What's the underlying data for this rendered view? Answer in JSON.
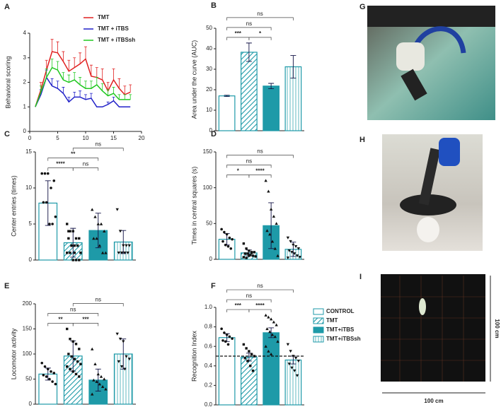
{
  "chart_data": [
    {
      "type": "line",
      "panel": "A",
      "ylabel": "Behavioral scoring",
      "x": [
        1,
        2,
        3,
        4,
        5,
        6,
        7,
        8,
        9,
        10,
        11,
        12,
        13,
        14,
        15,
        16,
        17,
        18
      ],
      "xlim": [
        0,
        20
      ],
      "xticks": [
        0,
        5,
        10,
        15,
        20
      ],
      "ylim": [
        0,
        4
      ],
      "yticks": [
        0,
        1,
        2,
        3,
        4
      ],
      "legend": "upper right",
      "series": [
        {
          "name": "TMT",
          "color": "#e02020",
          "values": [
            1.0,
            1.7,
            2.5,
            3.25,
            3.2,
            2.85,
            2.45,
            2.6,
            2.75,
            2.95,
            2.25,
            2.2,
            2.1,
            1.65,
            2.1,
            1.75,
            1.5,
            1.6
          ],
          "errors": [
            0,
            0.3,
            0.4,
            0.5,
            0.45,
            0.4,
            0.45,
            0.4,
            0.45,
            0.5,
            0.45,
            0.4,
            0.45,
            0.35,
            0.45,
            0.4,
            0.35,
            0.3
          ]
        },
        {
          "name": "TMT + iTBS",
          "color": "#2020c8",
          "values": [
            1.0,
            1.5,
            2.2,
            1.85,
            1.75,
            1.55,
            1.2,
            1.4,
            1.4,
            1.3,
            1.35,
            1.0,
            1.0,
            1.1,
            1.25,
            1.0,
            1.0,
            1.0
          ],
          "errors": [
            0,
            0.2,
            0.3,
            0.3,
            0.3,
            0.25,
            0.2,
            0.2,
            0.25,
            0.2,
            0.2,
            0,
            0,
            0.1,
            0.15,
            0,
            0,
            0
          ]
        },
        {
          "name": "TMT + iTBSsh",
          "color": "#20c820",
          "values": [
            1.0,
            1.6,
            2.2,
            2.6,
            2.5,
            2.1,
            2.0,
            2.1,
            1.9,
            1.75,
            1.75,
            1.9,
            1.65,
            1.45,
            1.55,
            1.3,
            1.3,
            1.3
          ],
          "errors": [
            0,
            0.25,
            0.35,
            0.35,
            0.35,
            0.3,
            0.3,
            0.3,
            0.3,
            0.3,
            0.3,
            0.3,
            0.3,
            0.25,
            0.25,
            0.2,
            0.2,
            0.2
          ]
        }
      ]
    },
    {
      "type": "bar",
      "panel": "B",
      "ylabel": "Area under the curve (AUC)",
      "color": "#1e9aa8",
      "styles": [
        "outline",
        "hatch",
        "solid",
        "vlines"
      ],
      "values": [
        17,
        38.3,
        21.8,
        31.2
      ],
      "errors": [
        0.3,
        4.5,
        1.3,
        5.5
      ],
      "ylim": [
        0,
        50
      ],
      "yticks": [
        0,
        10,
        20,
        30,
        40,
        50
      ],
      "comparisons": [
        {
          "pair": [
            0,
            1
          ],
          "label": "***"
        },
        {
          "pair": [
            1,
            2
          ],
          "label": "*"
        },
        {
          "pair": [
            0,
            2
          ],
          "label": "ns"
        },
        {
          "pair": [
            0,
            3
          ],
          "label": "ns"
        }
      ]
    },
    {
      "type": "bar",
      "panel": "C",
      "ylabel": "Center entries (times)",
      "color": "#1e9aa8",
      "styles": [
        "outline",
        "hatch",
        "solid",
        "vlines"
      ],
      "values": [
        7.9,
        2.4,
        4.1,
        2.5
      ],
      "errors": [
        3.1,
        2.0,
        2.4,
        1.6
      ],
      "points": [
        [
          12,
          12,
          12,
          10,
          11,
          8,
          8,
          5,
          5,
          6
        ],
        [
          5,
          4,
          4,
          3,
          3,
          3,
          2,
          2,
          2,
          1,
          1,
          1,
          0,
          0,
          0,
          4,
          2,
          1
        ],
        [
          7,
          6,
          5,
          5,
          4,
          3,
          3,
          2,
          1,
          1
        ],
        [
          7,
          4,
          2,
          2,
          2,
          1,
          1,
          1,
          1
        ]
      ],
      "ylim": [
        0,
        15
      ],
      "yticks": [
        0,
        5,
        10,
        15
      ],
      "comparisons": [
        {
          "pair": [
            0,
            1
          ],
          "label": "****"
        },
        {
          "pair": [
            1,
            2
          ],
          "label": "ns"
        },
        {
          "pair": [
            0,
            2
          ],
          "label": "**"
        },
        {
          "pair": [
            1,
            3
          ],
          "label": "ns"
        }
      ]
    },
    {
      "type": "bar",
      "panel": "D",
      "ylabel": "Times in central squares (s)",
      "color": "#1e9aa8",
      "styles": [
        "outline",
        "hatch",
        "solid",
        "vlines"
      ],
      "values": [
        28,
        9,
        47,
        14
      ],
      "errors": [
        8,
        4,
        32,
        10
      ],
      "points": [
        [
          42,
          38,
          35,
          30,
          28,
          25,
          20,
          18,
          15
        ],
        [
          22,
          15,
          12,
          10,
          10,
          8,
          8,
          6,
          5,
          4,
          3,
          2,
          5,
          9
        ],
        [
          110,
          95,
          70,
          60,
          50,
          40,
          35,
          25,
          15,
          5
        ],
        [
          30,
          25,
          20,
          18,
          15,
          12,
          10,
          8,
          5,
          3,
          2
        ]
      ],
      "ylim": [
        0,
        150
      ],
      "yticks": [
        0,
        50,
        100,
        150
      ],
      "comparisons": [
        {
          "pair": [
            0,
            1
          ],
          "label": "*"
        },
        {
          "pair": [
            1,
            2
          ],
          "label": "****"
        },
        {
          "pair": [
            0,
            2
          ],
          "label": "ns"
        },
        {
          "pair": [
            0,
            3
          ],
          "label": "ns"
        }
      ]
    },
    {
      "type": "bar",
      "panel": "E",
      "ylabel": "Locomotor activity",
      "color": "#1e9aa8",
      "styles": [
        "outline",
        "hatch",
        "solid",
        "vlines"
      ],
      "values": [
        60,
        96,
        48,
        100
      ],
      "errors": [
        12,
        30,
        22,
        30
      ],
      "points": [
        [
          82,
          75,
          70,
          65,
          62,
          58,
          55,
          50,
          45,
          40
        ],
        [
          150,
          130,
          125,
          120,
          110,
          100,
          95,
          90,
          85,
          80,
          75,
          70,
          65,
          60,
          55
        ],
        [
          110,
          80,
          60,
          55,
          50,
          48,
          45,
          40,
          35,
          30,
          20
        ],
        [
          140,
          130,
          125,
          95,
          90,
          85,
          75,
          70
        ]
      ],
      "ylim": [
        0,
        200
      ],
      "yticks": [
        0,
        50,
        100,
        150,
        200
      ],
      "comparisons": [
        {
          "pair": [
            0,
            1
          ],
          "label": "**"
        },
        {
          "pair": [
            1,
            2
          ],
          "label": "***"
        },
        {
          "pair": [
            0,
            2
          ],
          "label": "ns"
        },
        {
          "pair": [
            1,
            3
          ],
          "label": "ns"
        }
      ]
    },
    {
      "type": "bar",
      "panel": "F",
      "ylabel": "Recognition Index",
      "color": "#1e9aa8",
      "styles": [
        "outline",
        "hatch",
        "solid",
        "vlines"
      ],
      "values": [
        0.69,
        0.49,
        0.74,
        0.46
      ],
      "errors": [
        0.04,
        0.04,
        0.05,
        0.04
      ],
      "points": [
        [
          0.78,
          0.74,
          0.72,
          0.7,
          0.68,
          0.66,
          0.65,
          0.62
        ],
        [
          0.62,
          0.58,
          0.55,
          0.52,
          0.5,
          0.48,
          0.45,
          0.4,
          0.35
        ],
        [
          0.92,
          0.9,
          0.88,
          0.85,
          0.82,
          0.78,
          0.75,
          0.72,
          0.7,
          0.65,
          0.6,
          0.55,
          0.52
        ],
        [
          0.62,
          0.55,
          0.5,
          0.48,
          0.45,
          0.42,
          0.38,
          0.35,
          0.3
        ]
      ],
      "reference_line": 0.5,
      "ylim": [
        0,
        1
      ],
      "yticks": [
        {
          "value": 0,
          "label": "0.0"
        },
        0.2,
        0.4,
        0.6,
        0.8,
        {
          "value": 1,
          "label": "1.0"
        }
      ],
      "legend": [
        "CONTROL",
        "TMT",
        "TMT+iTBS",
        "TMT+iTBSsh"
      ],
      "comparisons": [
        {
          "pair": [
            0,
            1
          ],
          "label": "***"
        },
        {
          "pair": [
            1,
            2
          ],
          "label": "****"
        },
        {
          "pair": [
            0,
            2
          ],
          "label": "ns"
        },
        {
          "pair": [
            0,
            3
          ],
          "label": "ns"
        }
      ]
    }
  ],
  "images": [
    {
      "panel": "G"
    },
    {
      "panel": "H"
    },
    {
      "panel": "I",
      "width_label": "100 cm",
      "height_label": "100 cm"
    }
  ]
}
